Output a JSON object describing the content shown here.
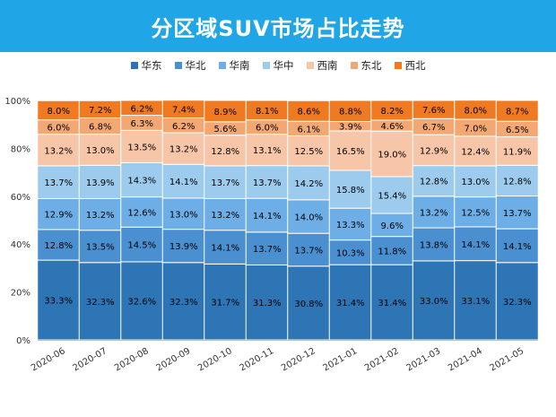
{
  "banner": {
    "title": "分区域SUV市场占比走势"
  },
  "chart_data": {
    "type": "bar",
    "stacked": true,
    "title": "分区域SUV市场占比走势",
    "categories": [
      "2020-06",
      "2020-07",
      "2020-08",
      "2020-09",
      "2020-10",
      "2020-11",
      "2020-12",
      "2021-01",
      "2021-02",
      "2021-03",
      "2021-04",
      "2021-05"
    ],
    "series": [
      {
        "name": "华东",
        "color": "#2e75b6",
        "values": [
          33.3,
          32.3,
          32.6,
          32.3,
          31.7,
          31.3,
          30.8,
          31.4,
          31.4,
          33.0,
          33.1,
          32.3
        ]
      },
      {
        "name": "华北",
        "color": "#4a8fd0",
        "values": [
          12.8,
          13.5,
          14.5,
          13.9,
          14.1,
          13.7,
          13.7,
          10.3,
          11.8,
          13.8,
          14.1,
          14.1
        ]
      },
      {
        "name": "华南",
        "color": "#6eaee6",
        "values": [
          12.9,
          13.2,
          12.6,
          13.0,
          13.2,
          14.1,
          14.0,
          13.3,
          9.6,
          13.2,
          12.5,
          13.7
        ]
      },
      {
        "name": "华中",
        "color": "#9dcbee",
        "values": [
          13.7,
          13.9,
          14.3,
          14.1,
          13.7,
          13.7,
          14.2,
          15.8,
          15.4,
          12.8,
          13.0,
          12.8
        ]
      },
      {
        "name": "西南",
        "color": "#f7c6a8",
        "values": [
          13.2,
          13.0,
          13.5,
          13.2,
          12.8,
          13.1,
          12.5,
          16.5,
          19.0,
          12.9,
          12.4,
          11.9
        ]
      },
      {
        "name": "东北",
        "color": "#f3a874",
        "values": [
          6.0,
          6.8,
          6.3,
          6.2,
          5.6,
          6.0,
          6.1,
          3.9,
          4.6,
          6.7,
          7.0,
          6.5
        ]
      },
      {
        "name": "西北",
        "color": "#ef7a22",
        "values": [
          8.0,
          7.2,
          6.2,
          7.4,
          8.9,
          8.1,
          8.6,
          8.8,
          8.2,
          7.6,
          8.0,
          8.7
        ]
      }
    ],
    "data_labels": [
      [
        "33.3%",
        "32.3%",
        "32.6%",
        "32.3%",
        "31.7%",
        "31.3%",
        "30.8%",
        "31.4%",
        "31.4%",
        "33.0%",
        "33.1%",
        "32.3%"
      ],
      [
        "12.8%",
        "13.5%",
        "14.5%",
        "13.9%",
        "14.1%",
        "13.7%",
        "13.7%",
        "10.3%",
        "11.8%",
        "13.8%",
        "14.1%",
        "14.1%"
      ],
      [
        "12.9%",
        "13.2%",
        "12.6%",
        "13.0%",
        "13.2%",
        "14.1%",
        "14.0%",
        "13.3%",
        "9.6%",
        "13.2%",
        "12.5%",
        "13.7%"
      ],
      [
        "13.7%",
        "13.9%",
        "14.3%",
        "14.1%",
        "13.7%",
        "13.7%",
        "14.2%",
        "15.8%",
        "15.4%",
        "12.8%",
        "13.0%",
        "12.8%"
      ],
      [
        "13.2%",
        "13.0%",
        "13.5%",
        "13.2%",
        "12.8%",
        "13.1%",
        "12.5%",
        "16.5%",
        "19.0%",
        "12.9%",
        "12.4%",
        "11.9%"
      ],
      [
        "6.0%",
        "6.8%",
        "6.3%",
        "6.2%",
        "5.6%",
        "6.0%",
        "6.1%",
        "3.9%",
        "4.6%",
        "6.7%",
        "7.0%",
        "6.5%"
      ],
      [
        "8.0%",
        "7.2%",
        "6.2%",
        "7.4%",
        "8.9%",
        "8.1%",
        "8.6%",
        "8.8%",
        "8.2%",
        "7.6%",
        "8.0%",
        "8.7%"
      ]
    ],
    "y_ticks": [
      "0%",
      "20%",
      "40%",
      "60%",
      "80%",
      "100%"
    ],
    "ylim": [
      0,
      100
    ],
    "grid": false,
    "legend_position": "top"
  }
}
